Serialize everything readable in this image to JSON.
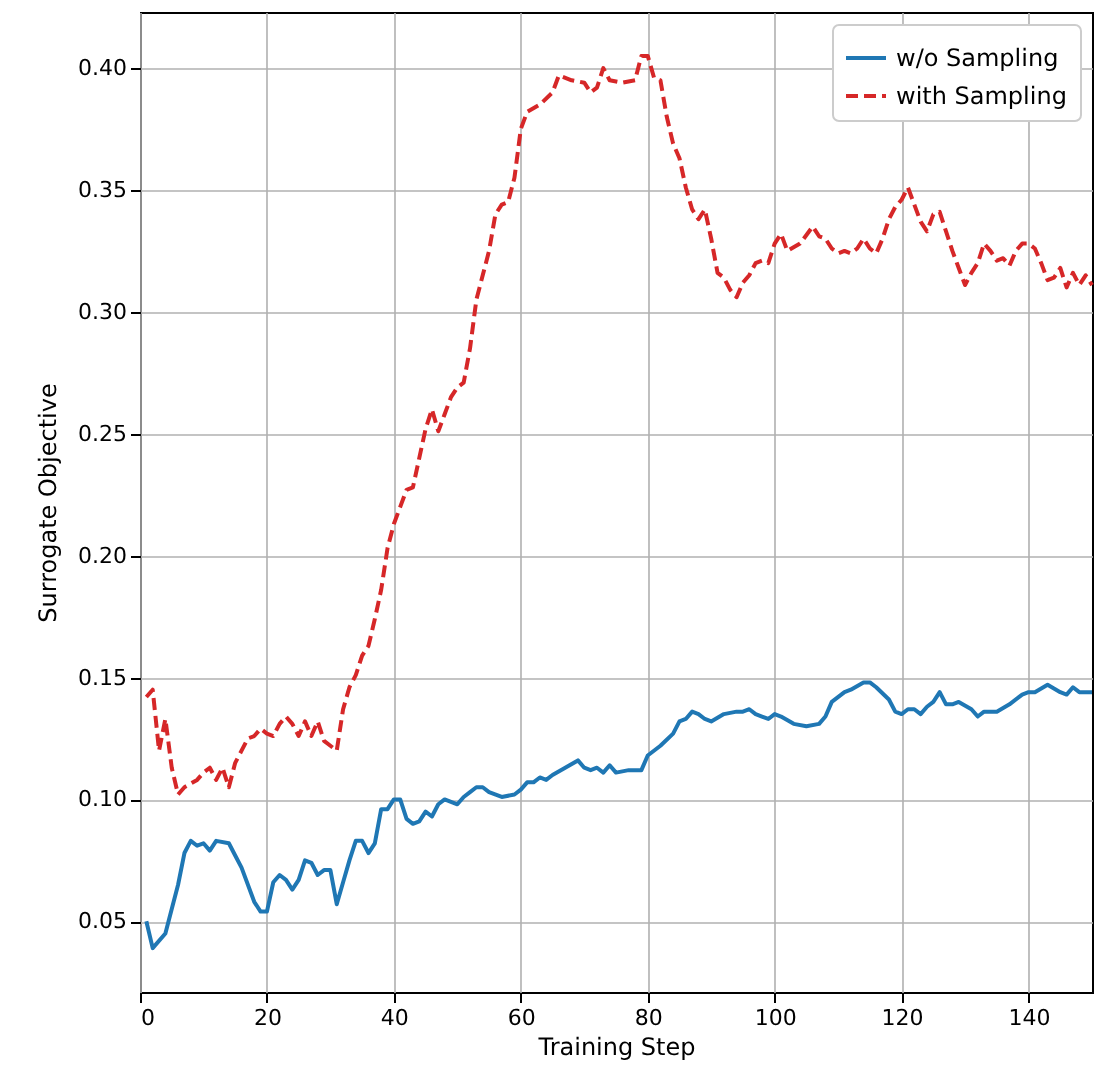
{
  "chart_data": {
    "type": "line",
    "xlabel": "Training Step",
    "ylabel": "Surrogate Objective",
    "xlim": [
      0,
      150
    ],
    "xticks": [
      0,
      20,
      40,
      60,
      80,
      100,
      120,
      140
    ],
    "ylim": [
      0.021,
      0.423
    ],
    "yticks": [
      0.05,
      {
        "value": 0.1,
        "label": "0.10"
      },
      0.15,
      {
        "value": 0.2,
        "label": "0.20"
      },
      0.25,
      {
        "value": 0.3,
        "label": "0.30"
      },
      0.35,
      {
        "value": 0.4,
        "label": "0.40"
      }
    ],
    "grid": true,
    "legend": "top right",
    "series": [
      {
        "name": "w/o Sampling",
        "color": "#1f77b4",
        "line_style": "solid",
        "x": [
          1,
          2,
          4,
          5,
          6,
          7,
          8,
          9,
          10,
          11,
          12,
          14,
          15,
          16,
          18,
          19,
          20,
          21,
          22,
          23,
          24,
          25,
          26,
          27,
          28,
          29,
          30,
          31,
          32,
          33,
          34,
          35,
          36,
          37,
          38,
          39,
          40,
          41,
          42,
          43,
          44,
          45,
          46,
          47,
          48,
          49,
          50,
          51,
          52,
          53,
          54,
          55,
          57,
          59,
          60,
          61,
          62,
          63,
          64,
          65,
          67,
          69,
          70,
          71,
          72,
          73,
          74,
          75,
          77,
          79,
          80,
          82,
          84,
          85,
          86,
          87,
          88,
          89,
          90,
          92,
          94,
          95,
          96,
          97,
          98,
          99,
          100,
          101,
          103,
          105,
          107,
          108,
          109,
          111,
          112,
          114,
          115,
          116,
          118,
          119,
          120,
          121,
          122,
          123,
          124,
          125,
          126,
          127,
          128,
          129,
          131,
          132,
          133,
          134,
          135,
          137,
          139,
          140,
          141,
          143,
          145,
          146,
          147,
          148,
          150
        ],
        "values": [
          0.05,
          0.039,
          0.045,
          0.055,
          0.065,
          0.078,
          0.083,
          0.081,
          0.082,
          0.079,
          0.083,
          0.082,
          0.077,
          0.072,
          0.058,
          0.054,
          0.054,
          0.066,
          0.069,
          0.067,
          0.063,
          0.067,
          0.075,
          0.074,
          0.069,
          0.071,
          0.071,
          0.057,
          0.066,
          0.075,
          0.083,
          0.083,
          0.078,
          0.082,
          0.096,
          0.096,
          0.1,
          0.1,
          0.092,
          0.09,
          0.091,
          0.095,
          0.093,
          0.098,
          0.1,
          0.099,
          0.098,
          0.101,
          0.103,
          0.105,
          0.105,
          0.103,
          0.101,
          0.102,
          0.104,
          0.107,
          0.107,
          0.109,
          0.108,
          0.11,
          0.113,
          0.116,
          0.113,
          0.112,
          0.113,
          0.111,
          0.114,
          0.111,
          0.112,
          0.112,
          0.118,
          0.122,
          0.127,
          0.132,
          0.133,
          0.136,
          0.135,
          0.133,
          0.132,
          0.135,
          0.136,
          0.136,
          0.137,
          0.135,
          0.134,
          0.133,
          0.135,
          0.134,
          0.131,
          0.13,
          0.131,
          0.134,
          0.14,
          0.144,
          0.145,
          0.148,
          0.148,
          0.146,
          0.141,
          0.136,
          0.135,
          0.137,
          0.137,
          0.135,
          0.138,
          0.14,
          0.144,
          0.139,
          0.139,
          0.14,
          0.137,
          0.134,
          0.136,
          0.136,
          0.136,
          0.139,
          0.143,
          0.144,
          0.144,
          0.147,
          0.144,
          0.143,
          0.146,
          0.144,
          0.144
        ]
      },
      {
        "name": "with Sampling",
        "color": "#d62728",
        "line_style": "dashed",
        "x": [
          1,
          2,
          3,
          4,
          5,
          6,
          7,
          9,
          10,
          11,
          12,
          13,
          14,
          15,
          16,
          17,
          18,
          19,
          20,
          21,
          22,
          23,
          24,
          25,
          26,
          27,
          28,
          29,
          30,
          31,
          32,
          33,
          34,
          35,
          36,
          37,
          38,
          39,
          40,
          41,
          42,
          43,
          44,
          45,
          46,
          47,
          48,
          49,
          50,
          51,
          52,
          53,
          54,
          55,
          56,
          57,
          58,
          59,
          60,
          61,
          63,
          65,
          66,
          68,
          70,
          71,
          72,
          73,
          74,
          76,
          78,
          79,
          80,
          81,
          82,
          83,
          84,
          85,
          86,
          87,
          88,
          89,
          90,
          91,
          92,
          93,
          94,
          95,
          96,
          97,
          98,
          99,
          100,
          101,
          102,
          104,
          106,
          107,
          108,
          109,
          110,
          111,
          112,
          113,
          114,
          115,
          116,
          117,
          118,
          119,
          120,
          121,
          122,
          123,
          124,
          125,
          126,
          127,
          128,
          129,
          130,
          131,
          132,
          133,
          134,
          135,
          136,
          137,
          138,
          139,
          140,
          141,
          142,
          143,
          144,
          145,
          146,
          147,
          148,
          149,
          150
        ],
        "values": [
          0.142,
          0.145,
          0.12,
          0.133,
          0.113,
          0.102,
          0.105,
          0.108,
          0.111,
          0.113,
          0.108,
          0.113,
          0.105,
          0.115,
          0.12,
          0.125,
          0.126,
          0.129,
          0.127,
          0.126,
          0.131,
          0.134,
          0.131,
          0.126,
          0.132,
          0.126,
          0.132,
          0.124,
          0.122,
          0.12,
          0.137,
          0.146,
          0.151,
          0.159,
          0.163,
          0.174,
          0.186,
          0.203,
          0.213,
          0.22,
          0.227,
          0.228,
          0.24,
          0.252,
          0.26,
          0.251,
          0.258,
          0.265,
          0.269,
          0.271,
          0.285,
          0.305,
          0.315,
          0.325,
          0.34,
          0.344,
          0.345,
          0.355,
          0.375,
          0.382,
          0.385,
          0.39,
          0.397,
          0.395,
          0.394,
          0.39,
          0.392,
          0.4,
          0.395,
          0.394,
          0.395,
          0.405,
          0.405,
          0.396,
          0.395,
          0.38,
          0.369,
          0.363,
          0.351,
          0.342,
          0.338,
          0.342,
          0.33,
          0.316,
          0.314,
          0.309,
          0.306,
          0.312,
          0.315,
          0.32,
          0.321,
          0.32,
          0.328,
          0.332,
          0.325,
          0.328,
          0.335,
          0.331,
          0.33,
          0.326,
          0.324,
          0.325,
          0.324,
          0.326,
          0.33,
          0.326,
          0.324,
          0.33,
          0.338,
          0.343,
          0.346,
          0.351,
          0.344,
          0.337,
          0.333,
          0.34,
          0.341,
          0.333,
          0.325,
          0.318,
          0.311,
          0.316,
          0.32,
          0.328,
          0.325,
          0.321,
          0.322,
          0.319,
          0.325,
          0.328,
          0.328,
          0.326,
          0.32,
          0.313,
          0.314,
          0.318,
          0.31,
          0.316,
          0.311,
          0.315,
          0.311
        ]
      }
    ]
  }
}
